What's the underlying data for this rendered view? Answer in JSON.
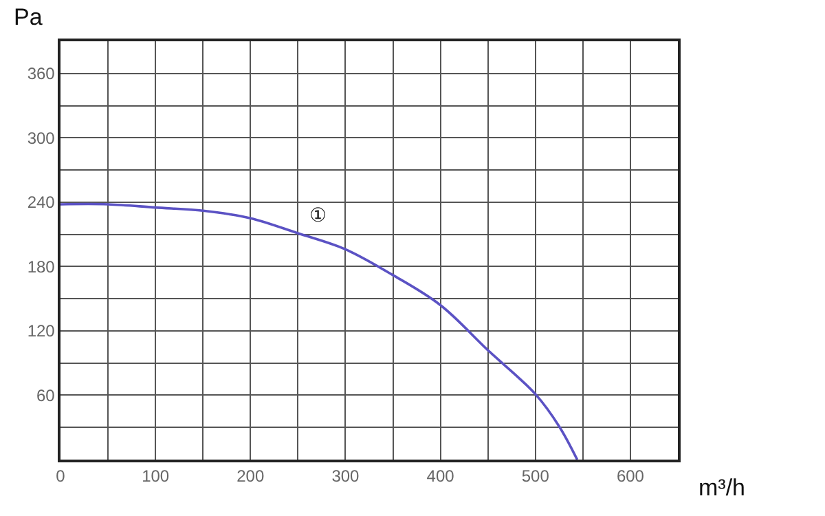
{
  "chart_data": {
    "type": "line",
    "xlabel": "m³/h",
    "ylabel": "Pa",
    "x": [
      0,
      50,
      100,
      150,
      200,
      250,
      300,
      350,
      400,
      450,
      500,
      525,
      544
    ],
    "series": [
      {
        "name": "①",
        "color": "#5b52c4",
        "values": [
          238,
          238,
          235,
          232,
          225,
          211,
          196,
          172,
          144,
          102,
          61,
          31,
          0
        ]
      }
    ],
    "xlim": [
      0,
      650
    ],
    "xticks": [
      0,
      {
        "value": 50,
        "label": null
      },
      100,
      {
        "value": 150,
        "label": null
      },
      200,
      {
        "value": 250,
        "label": null
      },
      300,
      {
        "value": 350,
        "label": null
      },
      400,
      {
        "value": 450,
        "label": null
      },
      500,
      {
        "value": 550,
        "label": null
      },
      600,
      {
        "value": 650,
        "label": null
      }
    ],
    "ylim": [
      0,
      390
    ],
    "yticks": [
      {
        "value": 0,
        "label": null
      },
      {
        "value": 30,
        "label": null
      },
      60,
      {
        "value": 90,
        "label": null
      },
      120,
      {
        "value": 150,
        "label": null
      },
      180,
      {
        "value": 210,
        "label": null
      },
      240,
      {
        "value": 270,
        "label": null
      },
      300,
      {
        "value": 330,
        "label": null
      },
      360,
      {
        "value": 390,
        "label": null
      }
    ],
    "grid": true,
    "marker": "none",
    "line_style": "solid",
    "legend": false
  }
}
